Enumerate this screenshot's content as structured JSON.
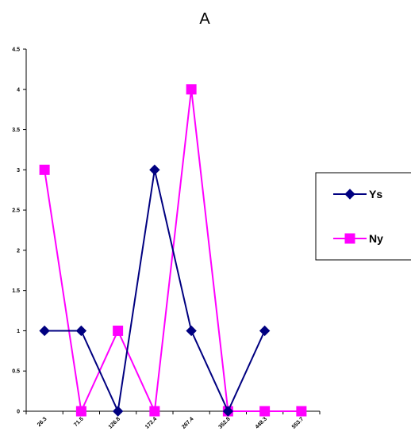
{
  "chart_data": {
    "type": "line",
    "title": "A",
    "xlabel": "",
    "ylabel": "",
    "categories": [
      "26.3",
      "71.5",
      "126.8",
      "172.4",
      "267.4",
      "352.8",
      "448.3",
      "553.7"
    ],
    "ylim": [
      0,
      4.5
    ],
    "yticks": [
      "0",
      "0.5",
      "1",
      "1.5",
      "2",
      "2.5",
      "3",
      "3.5",
      "4",
      "4.5"
    ],
    "grid": false,
    "legend": "right",
    "series": [
      {
        "name": "Ys",
        "values": [
          1,
          1,
          0,
          3,
          1,
          0,
          1,
          null
        ],
        "color": "#000080",
        "marker": "diamond"
      },
      {
        "name": "Ny",
        "values": [
          3,
          0,
          1,
          0,
          4,
          0,
          0,
          0
        ],
        "color": "#ff00ff",
        "marker": "square"
      }
    ]
  }
}
